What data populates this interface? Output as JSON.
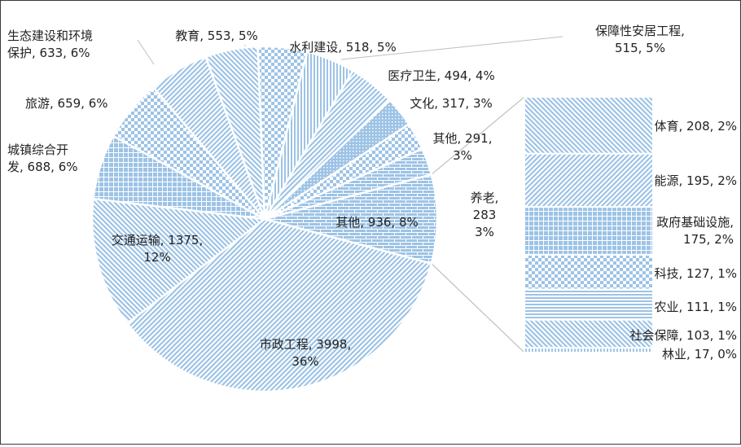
{
  "chart_data": {
    "type": "pie",
    "title": "",
    "main": [
      {
        "name": "其他",
        "value": 936,
        "pct": "8%"
      },
      {
        "name": "市政工程",
        "value": 3998,
        "pct": "36%"
      },
      {
        "name": "交通运输",
        "value": 1375,
        "pct": "12%"
      },
      {
        "name": "城镇综合开发",
        "value": 688,
        "pct": "6%"
      },
      {
        "name": "旅游",
        "value": 659,
        "pct": "6%"
      },
      {
        "name": "生态建设和环境保护",
        "value": 633,
        "pct": "6%"
      },
      {
        "name": "教育",
        "value": 553,
        "pct": "5%"
      },
      {
        "name": "水利建设",
        "value": 518,
        "pct": "5%"
      },
      {
        "name": "保障性安居工程",
        "value": 515,
        "pct": "5%"
      },
      {
        "name": "医疗卫生",
        "value": 494,
        "pct": "4%"
      },
      {
        "name": "文化",
        "value": 317,
        "pct": "3%"
      },
      {
        "name": "其他",
        "value": 291,
        "pct": "3%"
      },
      {
        "name": "养老",
        "value": 283,
        "pct": "3%"
      }
    ],
    "breakdown_of": "其他",
    "breakdown": [
      {
        "name": "体育",
        "value": 208,
        "pct": "2%"
      },
      {
        "name": "能源",
        "value": 195,
        "pct": "2%"
      },
      {
        "name": "政府基础设施",
        "value": 175,
        "pct": "2%"
      },
      {
        "name": "科技",
        "value": 127,
        "pct": "1%"
      },
      {
        "name": "农业",
        "value": 111,
        "pct": "1%"
      },
      {
        "name": "社会保障",
        "value": 103,
        "pct": "1%"
      },
      {
        "name": "林业",
        "value": 17,
        "pct": "0%"
      }
    ],
    "colors": {
      "fill": "#9dc3e6",
      "stroke": "#ffffff",
      "connector": "#bfbfbf",
      "text": "#222222"
    }
  }
}
